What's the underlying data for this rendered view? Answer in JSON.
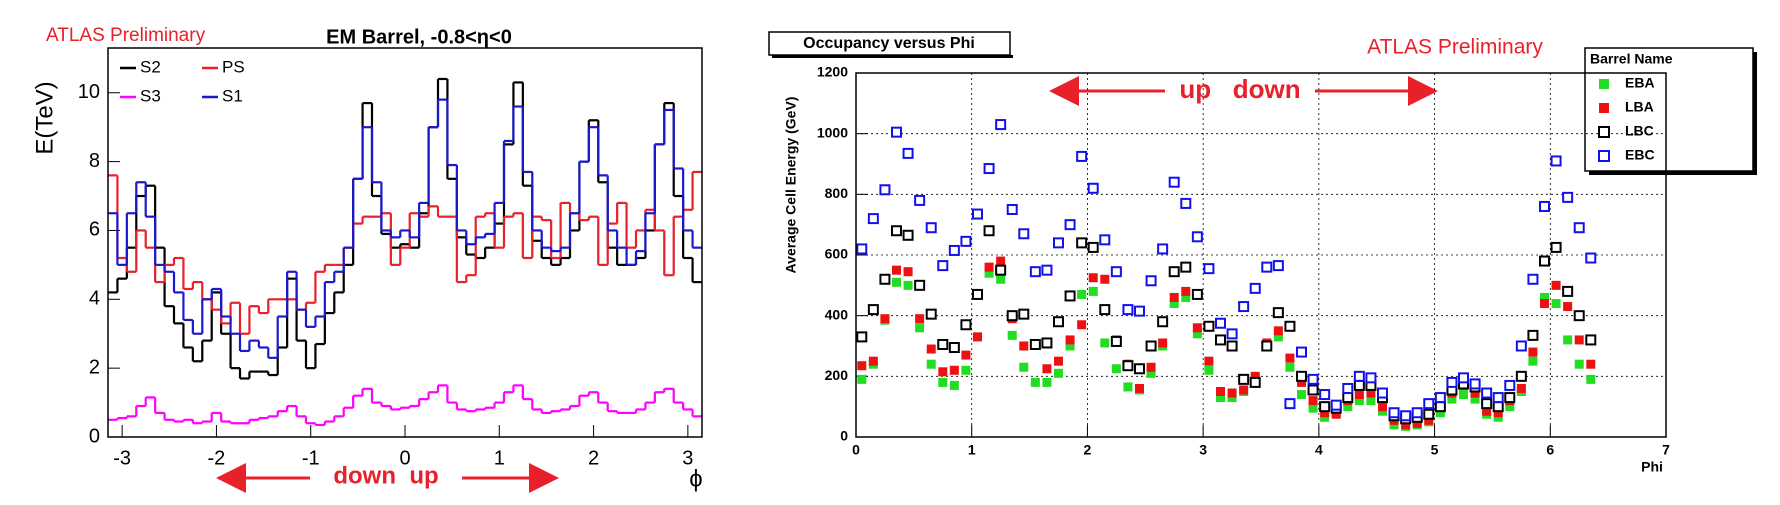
{
  "chart_data": [
    {
      "type": "step",
      "title": "EM Barrel, -0.8<η<0",
      "y_label": "E(TeV)",
      "x_label": "ϕ",
      "annotations": [
        "ATLAS Preliminary",
        "down  up"
      ],
      "legend": "upper left",
      "xlim": [
        -3.15,
        3.15
      ],
      "xticks": [
        -3,
        -2,
        -1,
        0,
        1,
        2,
        3
      ],
      "ylim": [
        0,
        11.3
      ],
      "yticks": [
        0,
        2,
        4,
        6,
        8,
        10
      ],
      "x": [
        -3.1,
        -3.0,
        -2.9,
        -2.8,
        -2.7,
        -2.6,
        -2.5,
        -2.4,
        -2.3,
        -2.2,
        -2.1,
        -2.0,
        -1.9,
        -1.8,
        -1.7,
        -1.6,
        -1.5,
        -1.4,
        -1.3,
        -1.2,
        -1.1,
        -1.0,
        -0.9,
        -0.8,
        -0.7,
        -0.6,
        -0.5,
        -0.4,
        -0.3,
        -0.2,
        -0.1,
        0.0,
        0.1,
        0.2,
        0.3,
        0.4,
        0.5,
        0.6,
        0.7,
        0.8,
        0.9,
        1.0,
        1.1,
        1.2,
        1.3,
        1.4,
        1.5,
        1.6,
        1.7,
        1.8,
        1.9,
        2.0,
        2.1,
        2.2,
        2.3,
        2.4,
        2.5,
        2.6,
        2.7,
        2.8,
        2.9,
        3.0,
        3.1
      ],
      "series": [
        {
          "name": "S2",
          "color": "#000000",
          "values": [
            4.2,
            4.6,
            5.5,
            7.0,
            7.3,
            5.5,
            3.8,
            3.3,
            2.6,
            2.2,
            2.8,
            4.2,
            3.0,
            2.0,
            1.7,
            1.9,
            1.9,
            1.8,
            2.6,
            4.6,
            2.8,
            2.0,
            2.7,
            3.6,
            4.2,
            5.0,
            7.5,
            9.7,
            7.0,
            5.9,
            5.5,
            5.6,
            5.5,
            6.5,
            9.0,
            10.4,
            7.5,
            5.8,
            5.3,
            5.2,
            5.5,
            6.2,
            8.5,
            10.3,
            7.3,
            5.7,
            5.2,
            5.0,
            5.2,
            6.0,
            8.0,
            9.2,
            7.4,
            5.5,
            5.0,
            5.0,
            5.2,
            6.0,
            8.5,
            9.7,
            7.0,
            5.2,
            4.5
          ]
        },
        {
          "name": "PS",
          "color": "#e8202a",
          "values": [
            7.6,
            5.2,
            4.8,
            6.0,
            5.5,
            4.5,
            5.0,
            5.2,
            4.3,
            4.5,
            4.0,
            3.7,
            3.3,
            3.9,
            3.0,
            3.8,
            3.6,
            4.0,
            4.0,
            4.0,
            3.7,
            3.9,
            4.8,
            5.0,
            5.0,
            5.5,
            6.2,
            6.4,
            6.4,
            6.5,
            5.0,
            5.5,
            6.5,
            6.4,
            6.7,
            6.4,
            6.4,
            4.5,
            4.7,
            6.4,
            6.5,
            5.5,
            6.4,
            6.5,
            5.2,
            6.4,
            6.3,
            5.2,
            6.8,
            6.5,
            6.3,
            6.4,
            5.0,
            6.2,
            6.8,
            5.5,
            6.0,
            6.6,
            6.0,
            4.7,
            6.4,
            6.6,
            7.7
          ]
        },
        {
          "name": "S3",
          "color": "#ff00ff",
          "values": [
            0.5,
            0.55,
            0.6,
            0.9,
            1.15,
            0.7,
            0.5,
            0.45,
            0.5,
            0.4,
            0.45,
            0.7,
            0.45,
            0.4,
            0.4,
            0.5,
            0.55,
            0.6,
            0.75,
            0.9,
            0.6,
            0.4,
            0.35,
            0.45,
            0.6,
            0.85,
            1.2,
            1.4,
            1.0,
            0.9,
            0.8,
            0.85,
            0.9,
            1.1,
            1.3,
            1.5,
            1.0,
            0.8,
            0.75,
            0.8,
            0.85,
            1.0,
            1.3,
            1.5,
            1.1,
            0.8,
            0.7,
            0.75,
            0.8,
            0.9,
            1.2,
            1.3,
            1.0,
            0.75,
            0.7,
            0.7,
            0.8,
            1.0,
            1.3,
            1.4,
            1.0,
            0.8,
            0.6
          ]
        },
        {
          "name": "S1",
          "color": "#1a1acc",
          "values": [
            6.5,
            5.0,
            6.5,
            7.4,
            6.4,
            5.0,
            4.8,
            4.2,
            3.4,
            3.0,
            4.0,
            4.3,
            3.5,
            3.0,
            2.5,
            2.8,
            2.6,
            2.3,
            3.5,
            4.8,
            3.7,
            3.2,
            3.5,
            4.5,
            4.8,
            5.5,
            7.5,
            9.0,
            7.4,
            6.0,
            5.8,
            6.0,
            5.8,
            6.8,
            9.0,
            9.8,
            7.9,
            6.0,
            5.6,
            5.8,
            5.9,
            6.8,
            8.6,
            9.6,
            7.7,
            6.0,
            5.5,
            5.4,
            5.5,
            6.5,
            8.0,
            9.0,
            7.6,
            6.0,
            5.5,
            5.0,
            5.4,
            6.5,
            8.5,
            9.5,
            7.8,
            6.0,
            5.5
          ]
        }
      ]
    },
    {
      "type": "scatter",
      "title": "Occupancy versus Phi",
      "y_label": "Average Cell Energy (GeV)",
      "x_label": "Phi",
      "annotations": [
        "ATLAS Preliminary",
        "up   down"
      ],
      "legend_title": "Barrel Name",
      "legend": "upper right",
      "grid": true,
      "xlim": [
        0,
        7
      ],
      "xticks": [
        0,
        1,
        2,
        3,
        4,
        5,
        6,
        7
      ],
      "ylim": [
        0,
        1200
      ],
      "yticks": [
        0,
        200,
        400,
        600,
        800,
        1000,
        1200
      ],
      "x": [
        0.05,
        0.15,
        0.25,
        0.35,
        0.45,
        0.55,
        0.65,
        0.75,
        0.85,
        0.95,
        1.05,
        1.15,
        1.25,
        1.35,
        1.45,
        1.55,
        1.65,
        1.75,
        1.85,
        1.95,
        2.05,
        2.15,
        2.25,
        2.35,
        2.45,
        2.55,
        2.65,
        2.75,
        2.85,
        2.95,
        3.05,
        3.15,
        3.25,
        3.35,
        3.45,
        3.55,
        3.65,
        3.75,
        3.85,
        3.95,
        4.05,
        4.15,
        4.25,
        4.35,
        4.45,
        4.55,
        4.65,
        4.75,
        4.85,
        4.95,
        5.05,
        5.15,
        5.25,
        5.35,
        5.45,
        5.55,
        5.65,
        5.75,
        5.85,
        5.95,
        6.05,
        6.15,
        6.25,
        6.35
      ],
      "series": [
        {
          "name": "EBA",
          "color": "#22dd22",
          "marker": "filled",
          "values": [
            190,
            240,
            385,
            510,
            500,
            360,
            240,
            180,
            170,
            220,
            330,
            540,
            520,
            335,
            230,
            180,
            180,
            210,
            300,
            470,
            480,
            310,
            225,
            165,
            155,
            210,
            300,
            440,
            460,
            340,
            220,
            130,
            130,
            150,
            190,
            300,
            330,
            230,
            140,
            95,
            65,
            80,
            100,
            120,
            120,
            85,
            40,
            35,
            40,
            50,
            80,
            125,
            140,
            125,
            75,
            65,
            100,
            150,
            250,
            460,
            440,
            320,
            240,
            190
          ]
        },
        {
          "name": "LBA",
          "color": "#ee1111",
          "marker": "filled",
          "values": [
            235,
            250,
            390,
            550,
            545,
            390,
            290,
            215,
            220,
            270,
            330,
            560,
            580,
            390,
            300,
            305,
            225,
            250,
            320,
            370,
            525,
            520,
            320,
            240,
            160,
            230,
            310,
            460,
            480,
            360,
            250,
            150,
            145,
            155,
            200,
            310,
            350,
            260,
            180,
            120,
            80,
            75,
            120,
            140,
            145,
            100,
            55,
            40,
            45,
            55,
            100,
            145,
            170,
            145,
            85,
            80,
            120,
            160,
            280,
            440,
            500,
            430,
            320,
            240
          ]
        },
        {
          "name": "LBC",
          "color": "#000000",
          "marker": "open",
          "values": [
            330,
            420,
            520,
            680,
            665,
            500,
            405,
            305,
            295,
            370,
            470,
            680,
            550,
            400,
            405,
            305,
            310,
            380,
            465,
            640,
            625,
            420,
            315,
            235,
            225,
            300,
            380,
            545,
            560,
            470,
            365,
            320,
            300,
            190,
            180,
            300,
            410,
            365,
            200,
            155,
            100,
            95,
            130,
            170,
            170,
            130,
            70,
            60,
            65,
            75,
            100,
            155,
            175,
            165,
            110,
            100,
            130,
            200,
            335,
            580,
            625,
            480,
            400,
            320
          ]
        },
        {
          "name": "EBC",
          "color": "#1111ee",
          "marker": "open",
          "values": [
            620,
            720,
            815,
            1005,
            935,
            780,
            690,
            565,
            615,
            645,
            735,
            885,
            1030,
            750,
            670,
            545,
            550,
            640,
            700,
            925,
            820,
            650,
            545,
            420,
            415,
            515,
            620,
            840,
            770,
            660,
            555,
            375,
            340,
            430,
            490,
            560,
            565,
            110,
            280,
            190,
            140,
            105,
            160,
            200,
            195,
            145,
            80,
            70,
            80,
            110,
            130,
            180,
            195,
            175,
            145,
            130,
            170,
            300,
            520,
            760,
            910,
            790,
            690,
            590
          ]
        }
      ]
    }
  ]
}
